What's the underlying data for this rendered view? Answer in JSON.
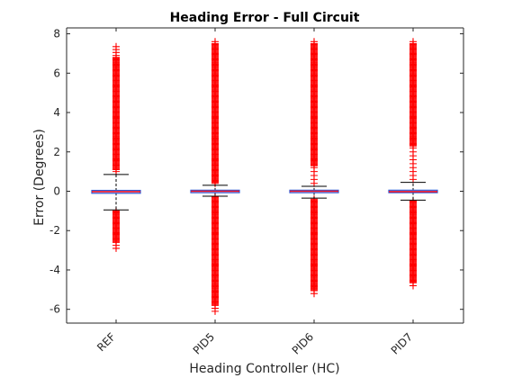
{
  "chart_data": {
    "type": "boxplot",
    "title": "Heading Error - Full Circuit",
    "xlabel": "Heading Controller (HC)",
    "ylabel": "Error (Degrees)",
    "ylim": [
      -6.7,
      8.3
    ],
    "yticks": [
      -6,
      -4,
      -2,
      0,
      2,
      4,
      6,
      8
    ],
    "ytick_labels": [
      "-6",
      "-4",
      "-2",
      "0",
      "2",
      "4",
      "6",
      "8"
    ],
    "categories": [
      "REF",
      "PID5",
      "PID6",
      "PID7"
    ],
    "boxes": [
      {
        "q1": -0.08,
        "median": -0.02,
        "q3": 0.02,
        "whisker_low": -0.95,
        "whisker_high": 0.85,
        "outlier_min": -2.9,
        "outlier_max": 7.4,
        "dense_low": [
          -2.6,
          -1.0
        ],
        "dense_high": [
          1.1,
          6.8
        ]
      },
      {
        "q1": -0.05,
        "median": 0.0,
        "q3": 0.03,
        "whisker_low": -0.25,
        "whisker_high": 0.3,
        "outlier_min": -6.1,
        "outlier_max": 7.6,
        "dense_low": [
          -5.8,
          -0.3
        ],
        "dense_high": [
          0.4,
          7.5
        ]
      },
      {
        "q1": -0.05,
        "median": 0.0,
        "q3": 0.03,
        "whisker_low": -0.35,
        "whisker_high": 0.25,
        "outlier_min": -5.2,
        "outlier_max": 7.6,
        "dense_low": [
          -5.0,
          -0.4
        ],
        "dense_high": [
          1.3,
          7.5
        ]
      },
      {
        "q1": -0.05,
        "median": -0.02,
        "q3": 0.03,
        "whisker_low": -0.45,
        "whisker_high": 0.45,
        "outlier_min": -4.8,
        "outlier_max": 7.6,
        "dense_low": [
          -4.6,
          -0.5
        ],
        "dense_high": [
          2.3,
          7.5
        ]
      }
    ],
    "colors": {
      "box": "#2d5bd7",
      "median": "#e8102a",
      "whisker": "#000000",
      "outlier": "#ff0000",
      "axis": "#262626"
    },
    "grid": false
  }
}
